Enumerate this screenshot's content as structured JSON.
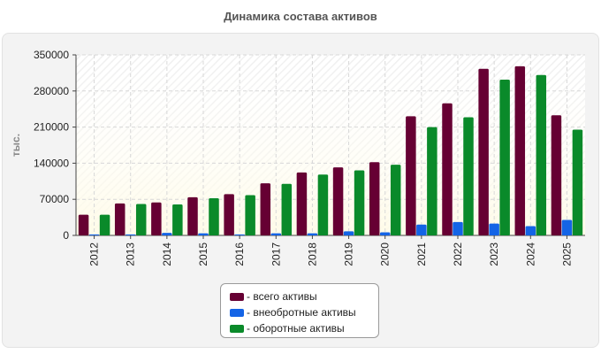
{
  "chart_data": {
    "type": "bar",
    "title": "Динамика состава активов",
    "ylabel": "тыс.",
    "xlabel": "",
    "ylim": [
      0,
      350000
    ],
    "yticks": [
      0,
      70000,
      140000,
      210000,
      280000,
      350000
    ],
    "categories": [
      "2012",
      "2013",
      "2014",
      "2015",
      "2016",
      "2017",
      "2018",
      "2019",
      "2020",
      "2021",
      "2022",
      "2023",
      "2024",
      "2025"
    ],
    "series": [
      {
        "name": "- всего активы",
        "color": "#660033",
        "values": [
          40000,
          62000,
          64000,
          74000,
          80000,
          101000,
          122000,
          132000,
          142000,
          231000,
          256000,
          323000,
          328000,
          233000
        ]
      },
      {
        "name": "- внеобротные активы",
        "color": "#1464e6",
        "values": [
          2000,
          2000,
          5000,
          4000,
          2000,
          4000,
          4000,
          8000,
          6000,
          21000,
          26000,
          23000,
          18000,
          30000
        ]
      },
      {
        "name": "- оборотные активы",
        "color": "#0a8a2a",
        "values": [
          40000,
          61000,
          60000,
          72000,
          78000,
          100000,
          118000,
          126000,
          137000,
          210000,
          229000,
          302000,
          311000,
          205000
        ]
      }
    ],
    "grid": true,
    "legend_position": "bottom-center"
  }
}
